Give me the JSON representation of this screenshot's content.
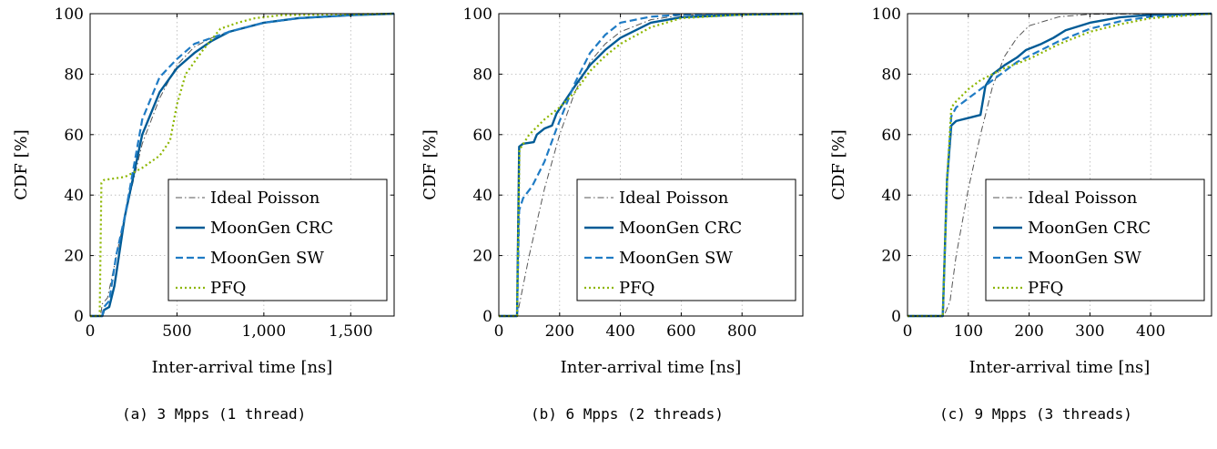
{
  "chart_data": [
    {
      "type": "line",
      "caption": "(a) 3 Mpps (1 thread)",
      "xlabel": "Inter-arrival time [ns]",
      "ylabel": "CDF [%]",
      "xlim": [
        0,
        1750
      ],
      "ylim": [
        0,
        100
      ],
      "xticks": [
        0,
        500,
        1000,
        1500
      ],
      "xtick_labels": [
        "0",
        "500",
        "1,000",
        "1,500"
      ],
      "yticks": [
        0,
        20,
        40,
        60,
        80,
        100
      ],
      "grid": true,
      "legend_position": "bottom-right",
      "series": [
        {
          "name": "Ideal Poisson",
          "style": "dashdot",
          "color": "#555555",
          "points": [
            [
              0,
              0
            ],
            [
              60,
              0
            ],
            [
              70,
              4
            ],
            [
              100,
              6
            ],
            [
              200,
              33
            ],
            [
              300,
              57
            ],
            [
              400,
              72
            ],
            [
              500,
              83
            ],
            [
              600,
              89
            ],
            [
              700,
              92
            ],
            [
              800,
              94
            ],
            [
              1000,
              97
            ],
            [
              1200,
              98.5
            ],
            [
              1500,
              99.5
            ],
            [
              1750,
              100
            ]
          ]
        },
        {
          "name": "MoonGen CRC",
          "style": "solid",
          "color": "#005b96",
          "points": [
            [
              0,
              0
            ],
            [
              70,
              0
            ],
            [
              80,
              2
            ],
            [
              110,
              3
            ],
            [
              140,
              10
            ],
            [
              200,
              33
            ],
            [
              300,
              60
            ],
            [
              400,
              74
            ],
            [
              500,
              82
            ],
            [
              600,
              87
            ],
            [
              700,
              91
            ],
            [
              800,
              94
            ],
            [
              1000,
              97
            ],
            [
              1200,
              98.5
            ],
            [
              1500,
              99.5
            ],
            [
              1750,
              100
            ]
          ]
        },
        {
          "name": "MoonGen SW",
          "style": "dashed",
          "color": "#1f7bc4",
          "points": [
            [
              0,
              0
            ],
            [
              70,
              0
            ],
            [
              80,
              3
            ],
            [
              110,
              5
            ],
            [
              150,
              20
            ],
            [
              200,
              33
            ],
            [
              300,
              65
            ],
            [
              400,
              79
            ],
            [
              500,
              85
            ],
            [
              600,
              90
            ],
            [
              700,
              92
            ],
            [
              800,
              94
            ],
            [
              1000,
              97
            ],
            [
              1200,
              98.5
            ],
            [
              1500,
              99.5
            ],
            [
              1750,
              100
            ]
          ]
        },
        {
          "name": "PFQ",
          "style": "dotted",
          "color": "#8db600",
          "points": [
            [
              0,
              0
            ],
            [
              55,
              0
            ],
            [
              65,
              44
            ],
            [
              80,
              45
            ],
            [
              200,
              46
            ],
            [
              300,
              49
            ],
            [
              400,
              53
            ],
            [
              460,
              58
            ],
            [
              500,
              70
            ],
            [
              550,
              80
            ],
            [
              650,
              88
            ],
            [
              750,
              95
            ],
            [
              850,
              97
            ],
            [
              950,
              98.5
            ],
            [
              1100,
              99.5
            ],
            [
              1750,
              100
            ]
          ]
        }
      ]
    },
    {
      "type": "line",
      "caption": "(b) 6 Mpps (2 threads)",
      "xlabel": "Inter-arrival time [ns]",
      "ylabel": "CDF [%]",
      "xlim": [
        0,
        1000
      ],
      "ylim": [
        0,
        100
      ],
      "xticks": [
        0,
        200,
        400,
        600,
        800
      ],
      "xtick_labels": [
        "0",
        "200",
        "400",
        "600",
        "800"
      ],
      "yticks": [
        0,
        20,
        40,
        60,
        80,
        100
      ],
      "grid": true,
      "legend_position": "bottom-right",
      "series": [
        {
          "name": "Ideal Poisson",
          "style": "dashdot",
          "color": "#555555",
          "points": [
            [
              0,
              0
            ],
            [
              60,
              0
            ],
            [
              70,
              5
            ],
            [
              100,
              20
            ],
            [
              150,
              42
            ],
            [
              200,
              60
            ],
            [
              250,
              74
            ],
            [
              300,
              84
            ],
            [
              350,
              90
            ],
            [
              400,
              94
            ],
            [
              500,
              98
            ],
            [
              600,
              99.5
            ],
            [
              1000,
              100
            ]
          ]
        },
        {
          "name": "MoonGen CRC",
          "style": "solid",
          "color": "#005b96",
          "points": [
            [
              0,
              0
            ],
            [
              60,
              0
            ],
            [
              67,
              56
            ],
            [
              80,
              57
            ],
            [
              115,
              57.5
            ],
            [
              125,
              60
            ],
            [
              150,
              62
            ],
            [
              175,
              63
            ],
            [
              190,
              67
            ],
            [
              250,
              76
            ],
            [
              300,
              83
            ],
            [
              350,
              88
            ],
            [
              400,
              92
            ],
            [
              500,
              97
            ],
            [
              600,
              98.8
            ],
            [
              800,
              99.7
            ],
            [
              1000,
              100
            ]
          ]
        },
        {
          "name": "MoonGen SW",
          "style": "dashed",
          "color": "#1f7bc4",
          "points": [
            [
              0,
              0
            ],
            [
              60,
              0
            ],
            [
              67,
              35
            ],
            [
              80,
              39
            ],
            [
              110,
              43
            ],
            [
              130,
              47
            ],
            [
              150,
              51
            ],
            [
              190,
              62
            ],
            [
              250,
              77
            ],
            [
              300,
              87
            ],
            [
              350,
              93
            ],
            [
              400,
              97
            ],
            [
              500,
              99
            ],
            [
              600,
              99.7
            ],
            [
              1000,
              100
            ]
          ]
        },
        {
          "name": "PFQ",
          "style": "dotted",
          "color": "#8db600",
          "points": [
            [
              0,
              0
            ],
            [
              60,
              0
            ],
            [
              68,
              55
            ],
            [
              100,
              60
            ],
            [
              150,
              65
            ],
            [
              200,
              69
            ],
            [
              250,
              74
            ],
            [
              300,
              81
            ],
            [
              350,
              86
            ],
            [
              400,
              90
            ],
            [
              500,
              95.5
            ],
            [
              600,
              98.5
            ],
            [
              800,
              99.7
            ],
            [
              1000,
              100
            ]
          ]
        }
      ]
    },
    {
      "type": "line",
      "caption": "(c) 9 Mpps (3 threads)",
      "xlabel": "Inter-arrival time [ns]",
      "ylabel": "CDF [%]",
      "xlim": [
        0,
        500
      ],
      "ylim": [
        0,
        100
      ],
      "xticks": [
        0,
        100,
        200,
        300,
        400
      ],
      "xtick_labels": [
        "0",
        "100",
        "200",
        "300",
        "400"
      ],
      "yticks": [
        0,
        20,
        40,
        60,
        80,
        100
      ],
      "grid": true,
      "legend_position": "bottom-right",
      "series": [
        {
          "name": "Ideal Poisson",
          "style": "dashdot",
          "color": "#555555",
          "points": [
            [
              0,
              0
            ],
            [
              60,
              0
            ],
            [
              70,
              5
            ],
            [
              80,
              20
            ],
            [
              100,
              42
            ],
            [
              120,
              60
            ],
            [
              140,
              76
            ],
            [
              160,
              86
            ],
            [
              180,
              92
            ],
            [
              200,
              96
            ],
            [
              250,
              99
            ],
            [
              300,
              99.8
            ],
            [
              500,
              100
            ]
          ]
        },
        {
          "name": "MoonGen CRC",
          "style": "solid",
          "color": "#005b96",
          "points": [
            [
              0,
              0
            ],
            [
              58,
              0
            ],
            [
              65,
              45
            ],
            [
              72,
              63
            ],
            [
              80,
              64.5
            ],
            [
              100,
              65.5
            ],
            [
              120,
              66.5
            ],
            [
              128,
              76
            ],
            [
              140,
              80
            ],
            [
              160,
              83
            ],
            [
              180,
              85.5
            ],
            [
              195,
              88
            ],
            [
              220,
              90
            ],
            [
              240,
              92
            ],
            [
              260,
              94.5
            ],
            [
              300,
              97
            ],
            [
              350,
              98.8
            ],
            [
              400,
              99.6
            ],
            [
              500,
              100
            ]
          ]
        },
        {
          "name": "MoonGen SW",
          "style": "dashed",
          "color": "#1f7bc4",
          "points": [
            [
              0,
              0
            ],
            [
              58,
              0
            ],
            [
              65,
              45
            ],
            [
              72,
              66
            ],
            [
              80,
              69
            ],
            [
              100,
              72
            ],
            [
              120,
              75
            ],
            [
              140,
              78
            ],
            [
              160,
              81
            ],
            [
              180,
              84
            ],
            [
              200,
              86
            ],
            [
              250,
              91
            ],
            [
              300,
              95
            ],
            [
              350,
              97.5
            ],
            [
              400,
              99
            ],
            [
              500,
              100
            ]
          ]
        },
        {
          "name": "PFQ",
          "style": "dotted",
          "color": "#8db600",
          "points": [
            [
              0,
              0
            ],
            [
              58,
              0
            ],
            [
              65,
              45
            ],
            [
              72,
              69
            ],
            [
              80,
              71
            ],
            [
              100,
              75
            ],
            [
              120,
              78
            ],
            [
              140,
              80
            ],
            [
              160,
              82
            ],
            [
              200,
              85
            ],
            [
              250,
              90
            ],
            [
              300,
              94
            ],
            [
              350,
              96.5
            ],
            [
              400,
              98.5
            ],
            [
              500,
              100
            ]
          ]
        }
      ]
    }
  ]
}
